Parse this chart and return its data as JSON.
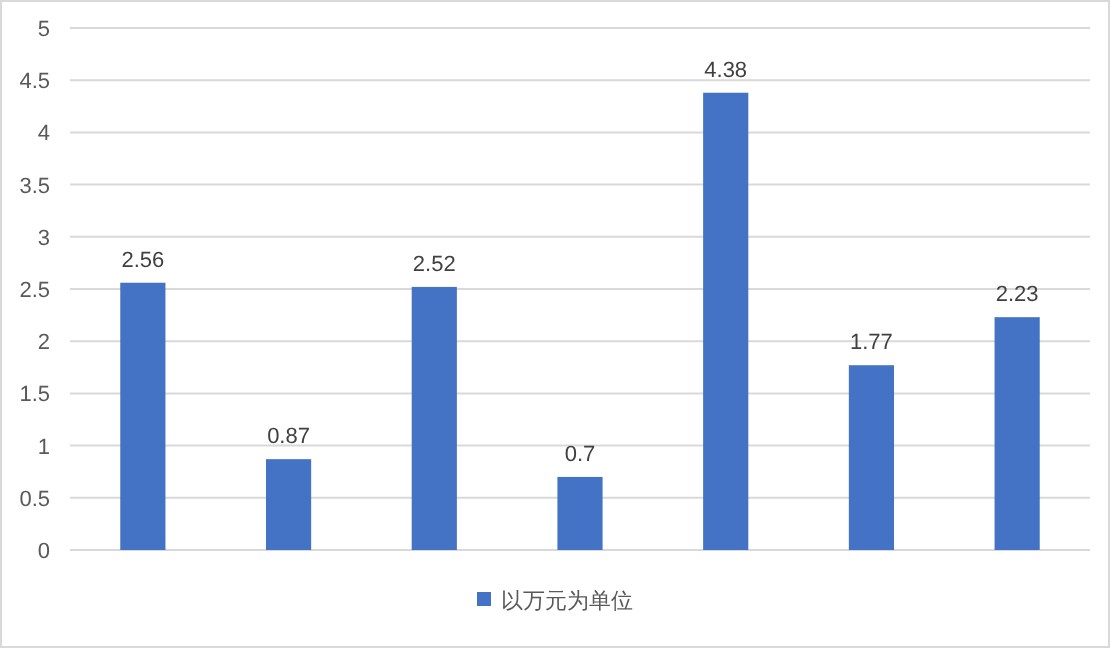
{
  "chart_data": {
    "type": "bar",
    "categories": [
      null,
      null,
      null,
      null,
      null,
      null,
      null
    ],
    "series": [
      {
        "name": "以万元为单位",
        "color": "#4472c4",
        "values": [
          2.56,
          0.87,
          2.52,
          0.7,
          4.38,
          1.77,
          2.23
        ]
      }
    ],
    "ylim": [
      0,
      5
    ],
    "yticks": [
      0,
      0.5,
      1,
      1.5,
      2,
      2.5,
      3,
      3.5,
      4,
      4.5,
      5
    ],
    "grid": "y",
    "legend": "bottom",
    "data_labels": true
  }
}
